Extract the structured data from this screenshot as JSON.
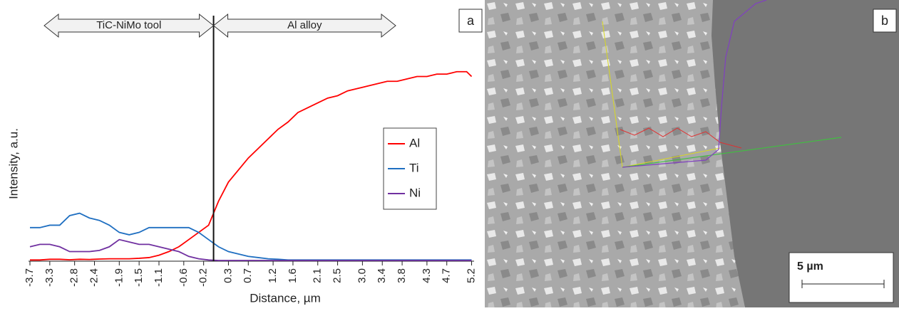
{
  "chart_data": {
    "type": "line",
    "panel_label": "a",
    "xlabel": "Distance, µm",
    "ylabel": "Intensity, a.u.",
    "annotations": [
      "TiC-NiMo tool",
      "Al alloy"
    ],
    "boundary_x": 0,
    "legend": "center-right",
    "xlim": [
      -3.7,
      5.25
    ],
    "ylim": [
      0,
      100
    ],
    "xticks": [
      -3.7,
      -3.3,
      -2.8,
      -2.4,
      -1.9,
      -1.5,
      -1.1,
      -0.6,
      -0.2,
      0.3,
      0.7,
      1.2,
      1.6,
      2.1,
      2.5,
      {
        "value": 3,
        "label": "3.0"
      },
      3.4,
      3.8,
      4.3,
      4.7,
      5.2
    ],
    "x": [
      -3.7,
      -3.5,
      -3.3,
      -3.1,
      -2.9,
      -2.7,
      -2.5,
      -2.3,
      -2.1,
      -1.9,
      -1.7,
      -1.5,
      -1.3,
      -1.1,
      -0.9,
      -0.7,
      -0.5,
      -0.3,
      -0.1,
      0.1,
      0.3,
      0.5,
      0.7,
      0.9,
      1.1,
      1.3,
      1.5,
      1.7,
      1.9,
      2.1,
      2.3,
      2.5,
      2.7,
      2.9,
      3.1,
      3.3,
      3.5,
      3.7,
      3.9,
      4.1,
      4.3,
      4.5,
      4.7,
      4.9,
      5.1,
      5.2
    ],
    "series": [
      {
        "name": "Al",
        "color": "#ff0000",
        "values": [
          0.5,
          0.5,
          0.8,
          0.8,
          0.6,
          0.8,
          0.7,
          0.9,
          1,
          1,
          1,
          1.2,
          1.5,
          2.5,
          4,
          6,
          9,
          12,
          15,
          25,
          33,
          38,
          43,
          47,
          51,
          55,
          58,
          62,
          64,
          66,
          68,
          69,
          71,
          72,
          73,
          74,
          75,
          75,
          76,
          77,
          77,
          78,
          78,
          79,
          79,
          77
        ]
      },
      {
        "name": "Ti",
        "color": "#1f6fc1",
        "values": [
          14,
          14,
          15,
          15,
          19,
          20,
          18,
          17,
          15,
          12,
          11,
          12,
          14,
          14,
          14,
          14,
          14,
          12,
          9,
          6,
          4,
          3,
          2,
          1.5,
          1,
          0.8,
          0.5,
          0.5,
          0.5,
          0.5,
          0.5,
          0.5,
          0.5,
          0.5,
          0.5,
          0.5,
          0.5,
          0.5,
          0.5,
          0.5,
          0.5,
          0.5,
          0.5,
          0.5,
          0.5,
          0.5
        ]
      },
      {
        "name": "Ni",
        "color": "#7030a0",
        "values": [
          6,
          7,
          7,
          6,
          4,
          4,
          4,
          4.5,
          6,
          9,
          8,
          7,
          7,
          6,
          5,
          4,
          2,
          1,
          0.5,
          0.3,
          0.3,
          0.3,
          0.3,
          0.3,
          0.3,
          0.3,
          0.3,
          0.3,
          0.3,
          0.3,
          0.3,
          0.3,
          0.3,
          0.3,
          0.3,
          0.3,
          0.3,
          0.3,
          0.3,
          0.3,
          0.3,
          0.3,
          0.3,
          0.3,
          0.3,
          0.3
        ]
      }
    ]
  },
  "image": {
    "panel_label": "b",
    "scale_bar": "5 µm"
  }
}
